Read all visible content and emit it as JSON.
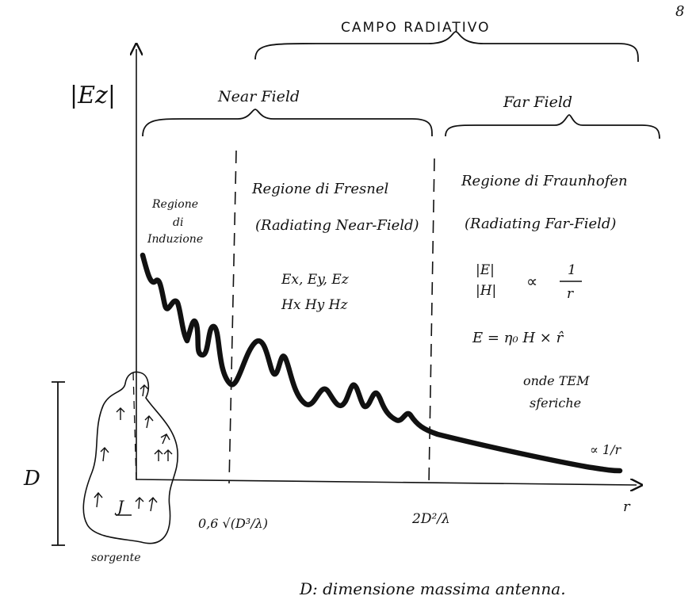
{
  "page_number": "8",
  "top_label": "CAMPO RADIATIVO",
  "near_field_label": "Near Field",
  "far_field_label": "Far Field",
  "y_axis_label": "|Ez|",
  "x_axis_label": "r",
  "regions": {
    "induction": [
      "Regione",
      "di",
      "Induzione"
    ],
    "fresnel": [
      "Regione di Fresnel",
      "(Radiating Near-Field)"
    ],
    "fraunhofer": [
      "Regione di Fraunhofen",
      "(Radiating Far-Field)"
    ]
  },
  "fresnel_components": [
    "Ex, Ey, Ez",
    "Hx  Hy  Hz"
  ],
  "fraunhofer_relations": {
    "ratio_lhs_top": "|E|",
    "ratio_lhs_bottom": "|H|",
    "ratio_symbol": "∝",
    "ratio_rhs_top": "1",
    "ratio_rhs_bottom": "r",
    "cross_product": "E = η₀ H × r̂",
    "tem_line1": "onde TEM",
    "tem_line2": "sferiche"
  },
  "curve_label": "∝ 1/r",
  "tick_1": "0,6 √(D³/λ)",
  "tick_2": "2D²/λ",
  "source_dimension": "D",
  "source_label": "sorgente",
  "source_current": "J",
  "footnote": "D: dimensione massima antenna.",
  "colors": {
    "ink": "#111111",
    "background": "#ffffff"
  }
}
